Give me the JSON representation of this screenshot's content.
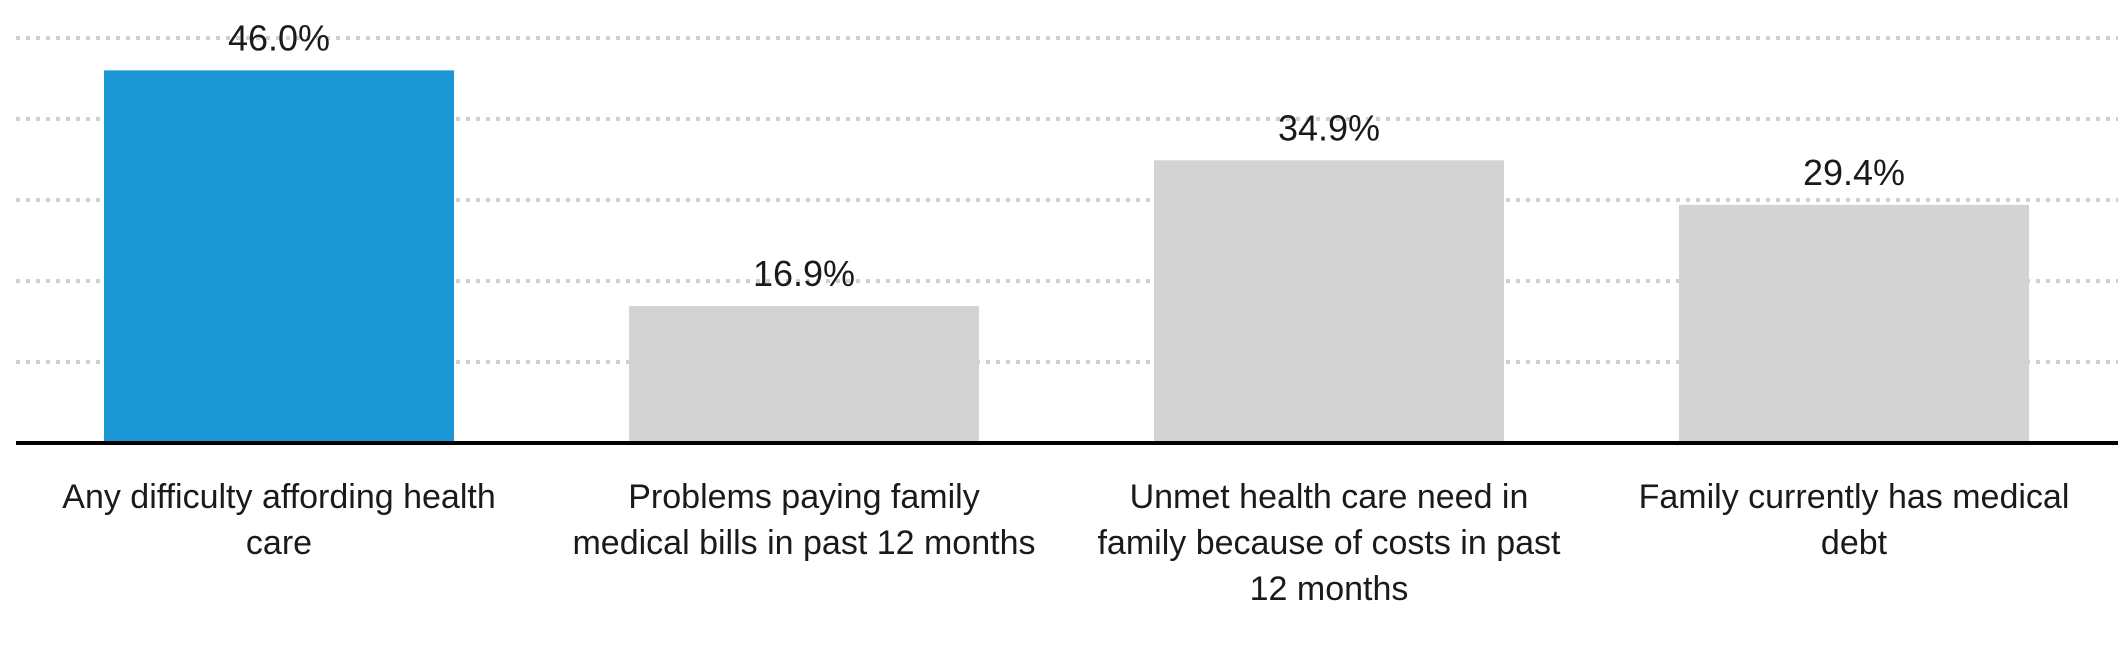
{
  "chart_data": {
    "type": "bar",
    "categories": [
      "Any difficulty affording health care",
      "Problems paying family medical bills in past 12 months",
      "Unmet health care need in family because of costs in past 12 months",
      "Family currently has medical debt"
    ],
    "category_lines": [
      [
        "Any difficulty affording health",
        "care"
      ],
      [
        "Problems paying family",
        "medical bills in past 12 months"
      ],
      [
        "Unmet health care need in",
        "family because of costs in past",
        "12 months"
      ],
      [
        "Family currently has medical",
        "debt"
      ]
    ],
    "values": [
      46.0,
      16.9,
      34.9,
      29.4
    ],
    "value_labels": [
      "46.0%",
      "16.9%",
      "34.9%",
      "29.4%"
    ],
    "highlight_index": 0,
    "ylim": [
      0,
      50
    ],
    "grid": true,
    "colors": {
      "highlight": "#1996D3",
      "default": "#D3D3D3",
      "axis": "#000000",
      "grid": "#D0D0D0"
    }
  }
}
